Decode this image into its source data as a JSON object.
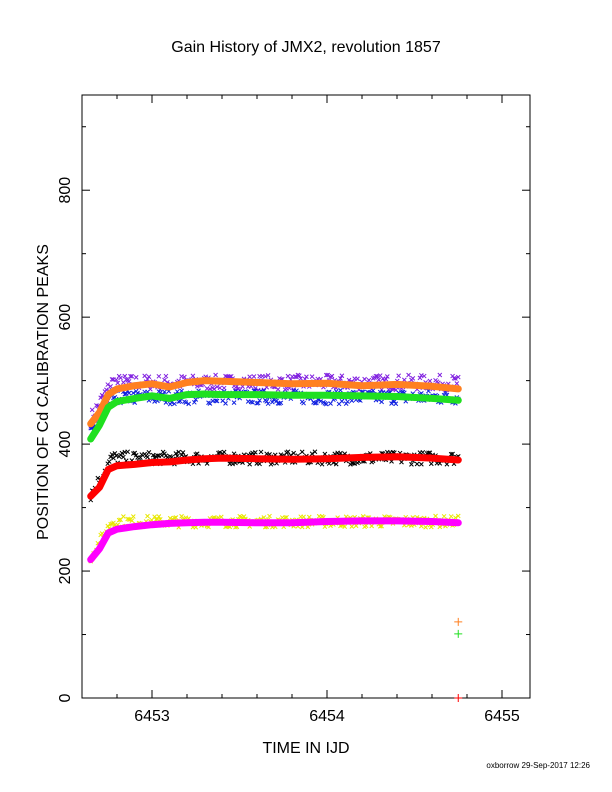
{
  "chart_data": {
    "type": "scatter",
    "title": "Gain History of JMX2, revolution 1857",
    "xlabel": "TIME IN IJD",
    "ylabel": "POSITION OF Cd CALIBRATION PEAKS",
    "xlim": [
      6452.6,
      6455.16
    ],
    "ylim": [
      0,
      950
    ],
    "xticks": [
      6453,
      6454,
      6455
    ],
    "yticks": [
      0,
      200,
      400,
      600,
      800
    ],
    "grid": false,
    "footer": "oxborrow 29-Sep-2017 12:26",
    "raw_series": [
      {
        "color": "#8020e0",
        "base": 497,
        "start": 440,
        "spread": 12,
        "marker": "x"
      },
      {
        "color": "#1020e0",
        "base": 474,
        "start": 415,
        "spread": 11,
        "marker": "x"
      },
      {
        "color": "#000000",
        "base": 378,
        "start": 320,
        "spread": 10,
        "marker": "x"
      },
      {
        "color": "#e8e800",
        "base": 278,
        "start": 222,
        "spread": 9,
        "marker": "x"
      }
    ],
    "series": [
      {
        "color": "#ff8020",
        "x": [
          6452.65,
          6452.7,
          6452.75,
          6452.8,
          6452.9,
          6453.0,
          6453.1,
          6453.2,
          6453.3,
          6453.4,
          6453.6,
          6453.8,
          6454.0,
          6454.2,
          6454.4,
          6454.6,
          6454.75
        ],
        "values": [
          432,
          450,
          478,
          487,
          492,
          495,
          490,
          497,
          500,
          499,
          497,
          495,
          496,
          492,
          494,
          491,
          487
        ]
      },
      {
        "color": "#20e020",
        "x": [
          6452.65,
          6452.7,
          6452.75,
          6452.8,
          6452.9,
          6453.0,
          6453.1,
          6453.2,
          6453.3,
          6453.4,
          6453.6,
          6453.8,
          6454.0,
          6454.2,
          6454.4,
          6454.6,
          6454.75
        ],
        "values": [
          408,
          430,
          458,
          467,
          472,
          476,
          472,
          478,
          479,
          478,
          478,
          477,
          477,
          476,
          475,
          472,
          469
        ]
      },
      {
        "color": "#ff0000",
        "x": [
          6452.65,
          6452.7,
          6452.75,
          6452.8,
          6452.9,
          6453.0,
          6453.1,
          6453.2,
          6453.3,
          6453.4,
          6453.6,
          6453.8,
          6454.0,
          6454.2,
          6454.4,
          6454.6,
          6454.75
        ],
        "values": [
          318,
          332,
          360,
          366,
          368,
          371,
          372,
          375,
          377,
          378,
          377,
          376,
          377,
          379,
          380,
          378,
          375
        ]
      },
      {
        "color": "#ff00ff",
        "x": [
          6452.65,
          6452.7,
          6452.75,
          6452.8,
          6452.9,
          6453.0,
          6453.1,
          6453.2,
          6453.3,
          6453.4,
          6453.6,
          6453.8,
          6454.0,
          6454.2,
          6454.4,
          6454.6,
          6454.75
        ],
        "values": [
          218,
          235,
          260,
          266,
          270,
          273,
          275,
          276,
          277,
          277,
          276,
          276,
          278,
          279,
          279,
          278,
          276
        ]
      }
    ],
    "outlier_points": [
      {
        "x": 6454.75,
        "y": 120,
        "color": "#ff8020"
      },
      {
        "x": 6454.75,
        "y": 101,
        "color": "#20e020"
      },
      {
        "x": 6454.75,
        "y": 0,
        "color": "#ff0000"
      }
    ]
  }
}
